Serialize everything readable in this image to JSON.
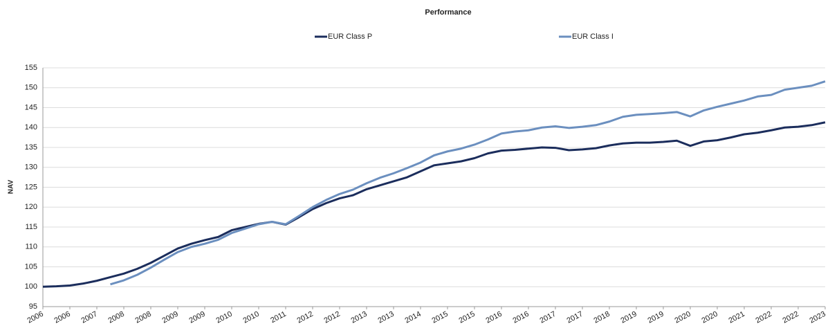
{
  "chart_data": {
    "type": "line",
    "title": "Performance",
    "y_label": "NAV",
    "categories": [
      "2006",
      null,
      "2006",
      null,
      "2007",
      null,
      "2008",
      null,
      "2008",
      null,
      "2009",
      null,
      "2009",
      null,
      "2010",
      null,
      "2010",
      null,
      "2011",
      null,
      "2012",
      null,
      "2012",
      null,
      "2013",
      null,
      "2013",
      null,
      "2014",
      null,
      "2015",
      null,
      "2015",
      null,
      "2016",
      null,
      "2016",
      null,
      "2017",
      null,
      "2017",
      null,
      "2018",
      null,
      "2019",
      null,
      "2019",
      null,
      "2020",
      null,
      "2020",
      null,
      "2021",
      null,
      "2022",
      null,
      "2022",
      null,
      "2023"
    ],
    "series": [
      {
        "name": "EUR Class P",
        "color": "#1b2d5c",
        "values": [
          100,
          100.1,
          100.3,
          100.8,
          101.5,
          102.4,
          103.3,
          104.5,
          106,
          107.8,
          109.6,
          110.8,
          111.7,
          112.5,
          114.2,
          115,
          115.8,
          116.3,
          115.6,
          117.5,
          119.5,
          121,
          122.2,
          123,
          124.5,
          125.5,
          126.5,
          127.5,
          129,
          130.5,
          131,
          131.5,
          132.3,
          133.5,
          134.2,
          134.4,
          134.7,
          135,
          134.9,
          134.3,
          134.5,
          134.8,
          135.5,
          136,
          136.2,
          136.2,
          136.4,
          136.7,
          135.4,
          136.5,
          136.8,
          137.5,
          138.3,
          138.7,
          139.3,
          140,
          140.2,
          140.6,
          141.3
        ]
      },
      {
        "name": "EUR Class I",
        "color": "#6b8fbf",
        "values": [
          null,
          null,
          null,
          null,
          null,
          100.6,
          101.6,
          103,
          104.8,
          106.8,
          108.7,
          110,
          110.8,
          111.8,
          113.5,
          114.6,
          115.7,
          116.3,
          115.7,
          117.8,
          120,
          121.8,
          123.3,
          124.4,
          126,
          127.4,
          128.5,
          129.8,
          131.2,
          133,
          134,
          134.7,
          135.7,
          137,
          138.5,
          139,
          139.3,
          140,
          140.3,
          139.9,
          140.2,
          140.6,
          141.5,
          142.7,
          143.2,
          143.4,
          143.6,
          143.9,
          142.8,
          144.3,
          145.2,
          146,
          146.8,
          147.8,
          148.2,
          149.5,
          150,
          150.5,
          151.6
        ]
      }
    ],
    "ylim": [
      95,
      155
    ],
    "yticks": [
      95,
      100,
      105,
      110,
      115,
      120,
      125,
      130,
      135,
      140,
      145,
      150,
      155
    ],
    "grid": true,
    "legend": "top"
  }
}
